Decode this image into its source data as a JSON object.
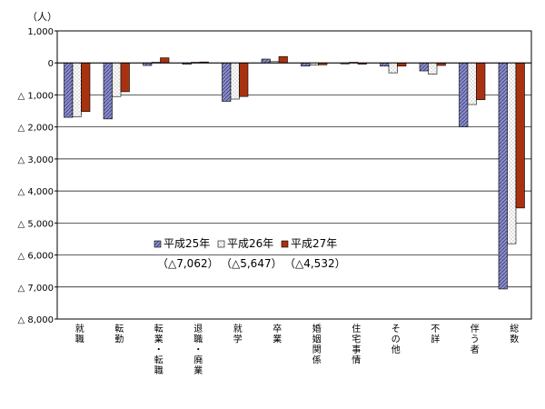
{
  "chart_data": {
    "type": "bar",
    "unit_label": "（人）",
    "ylim": [
      -8000,
      1000
    ],
    "yticks": [
      {
        "value": 1000,
        "label": "1,000"
      },
      {
        "value": 0,
        "label": "0"
      },
      {
        "value": -1000,
        "label": "△ 1,000"
      },
      {
        "value": -2000,
        "label": "△ 2,000"
      },
      {
        "value": -3000,
        "label": "△ 3,000"
      },
      {
        "value": -4000,
        "label": "△ 4,000"
      },
      {
        "value": -5000,
        "label": "△ 5,000"
      },
      {
        "value": -6000,
        "label": "△ 6,000"
      },
      {
        "value": -7000,
        "label": "△ 7,000"
      },
      {
        "value": -8000,
        "label": "△ 8,000"
      }
    ],
    "categories": [
      "就職",
      "転勤",
      "転業・転職",
      "退職・廃業",
      "就学",
      "卒業",
      "婚姻関係",
      "住宅事情",
      "その他",
      "不詳",
      "伴う者",
      "総数"
    ],
    "series": [
      {
        "name": "平成25年",
        "total_label": "（△7,062）",
        "color": "#8d8fc4",
        "values": [
          -1700,
          -1750,
          -80,
          -40,
          -1200,
          120,
          -100,
          -30,
          -100,
          -250,
          -2000,
          -7062
        ]
      },
      {
        "name": "平成26年",
        "total_label": "（△5,647）",
        "color": "#ffffff",
        "values": [
          -1680,
          -1050,
          20,
          20,
          -1130,
          40,
          -70,
          20,
          -310,
          -350,
          -1300,
          -5647
        ]
      },
      {
        "name": "平成27年",
        "total_label": "（△4,532）",
        "color": "#a83210",
        "total_label_color": "#cc0000",
        "values": [
          -1520,
          -900,
          160,
          30,
          -1050,
          200,
          -60,
          -40,
          -100,
          -80,
          -1150,
          -4532
        ]
      }
    ],
    "grid": true,
    "legend_position": "center"
  }
}
